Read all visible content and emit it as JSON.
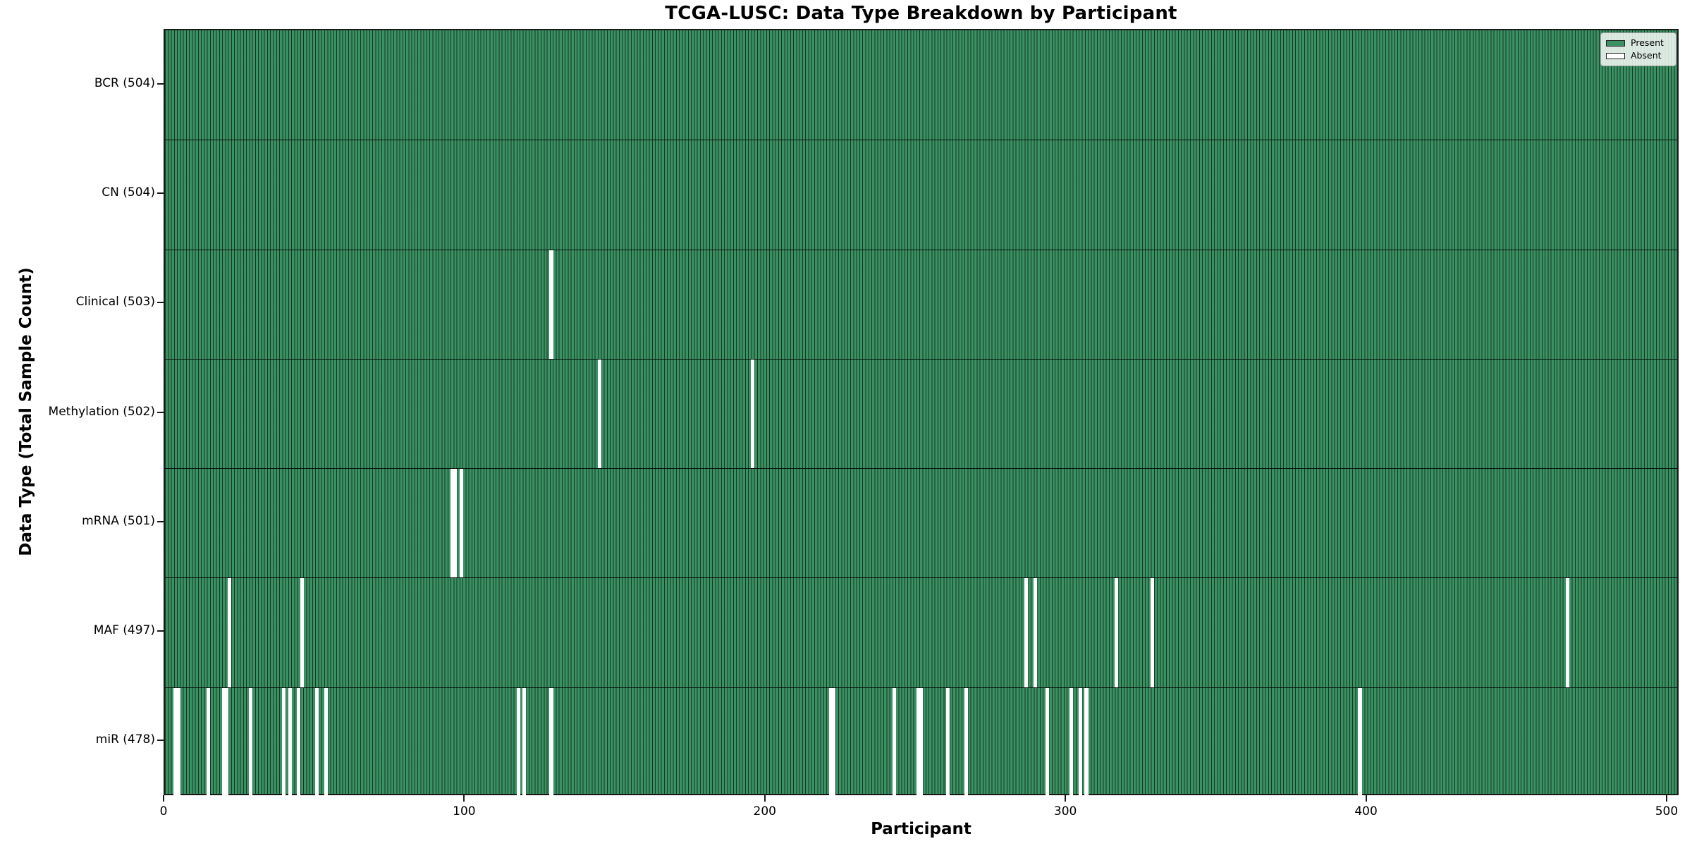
{
  "title": "TCGA-LUSC: Data Type Breakdown by Participant",
  "xlabel": "Participant",
  "ylabel": "Data Type (Total Sample Count)",
  "legend": {
    "present_label": "Present",
    "absent_label": "Absent"
  },
  "colors": {
    "present_fill": "#3a9162",
    "bar_edge": "#14281c",
    "absent_fill": "#ffffff",
    "separator": "#000000"
  },
  "chart_data": {
    "type": "heatmap",
    "title": "TCGA-LUSC: Data Type Breakdown by Participant",
    "xlabel": "Participant",
    "ylabel": "Data Type (Total Sample Count)",
    "x_range": [
      0,
      504
    ],
    "x_ticks": [
      0,
      100,
      200,
      300,
      400,
      500
    ],
    "legend_entries": [
      "Present",
      "Absent"
    ],
    "legend_position": "upper right",
    "grid": false,
    "rows": [
      {
        "label": "BCR (504)",
        "data_type": "BCR",
        "total_sample_count": 504,
        "absent_participants": []
      },
      {
        "label": "CN (504)",
        "data_type": "CN",
        "total_sample_count": 504,
        "absent_participants": []
      },
      {
        "label": "Clinical (503)",
        "data_type": "Clinical",
        "total_sample_count": 503,
        "absent_participants": [
          128
        ]
      },
      {
        "label": "Methylation (502)",
        "data_type": "Methylation",
        "total_sample_count": 502,
        "absent_participants": [
          144,
          195
        ]
      },
      {
        "label": "mRNA (501)",
        "data_type": "mRNA",
        "total_sample_count": 501,
        "absent_participants": [
          95,
          96,
          98
        ]
      },
      {
        "label": "MAF (497)",
        "data_type": "MAF",
        "total_sample_count": 497,
        "absent_participants": [
          21,
          45,
          286,
          289,
          316,
          328,
          466
        ]
      },
      {
        "label": "miR (478)",
        "data_type": "miR",
        "total_sample_count": 478,
        "absent_participants": [
          3,
          4,
          14,
          19,
          20,
          28,
          39,
          41,
          44,
          50,
          53,
          117,
          119,
          128,
          221,
          222,
          242,
          250,
          251,
          260,
          266,
          293,
          301,
          304,
          306,
          397
        ]
      }
    ]
  }
}
